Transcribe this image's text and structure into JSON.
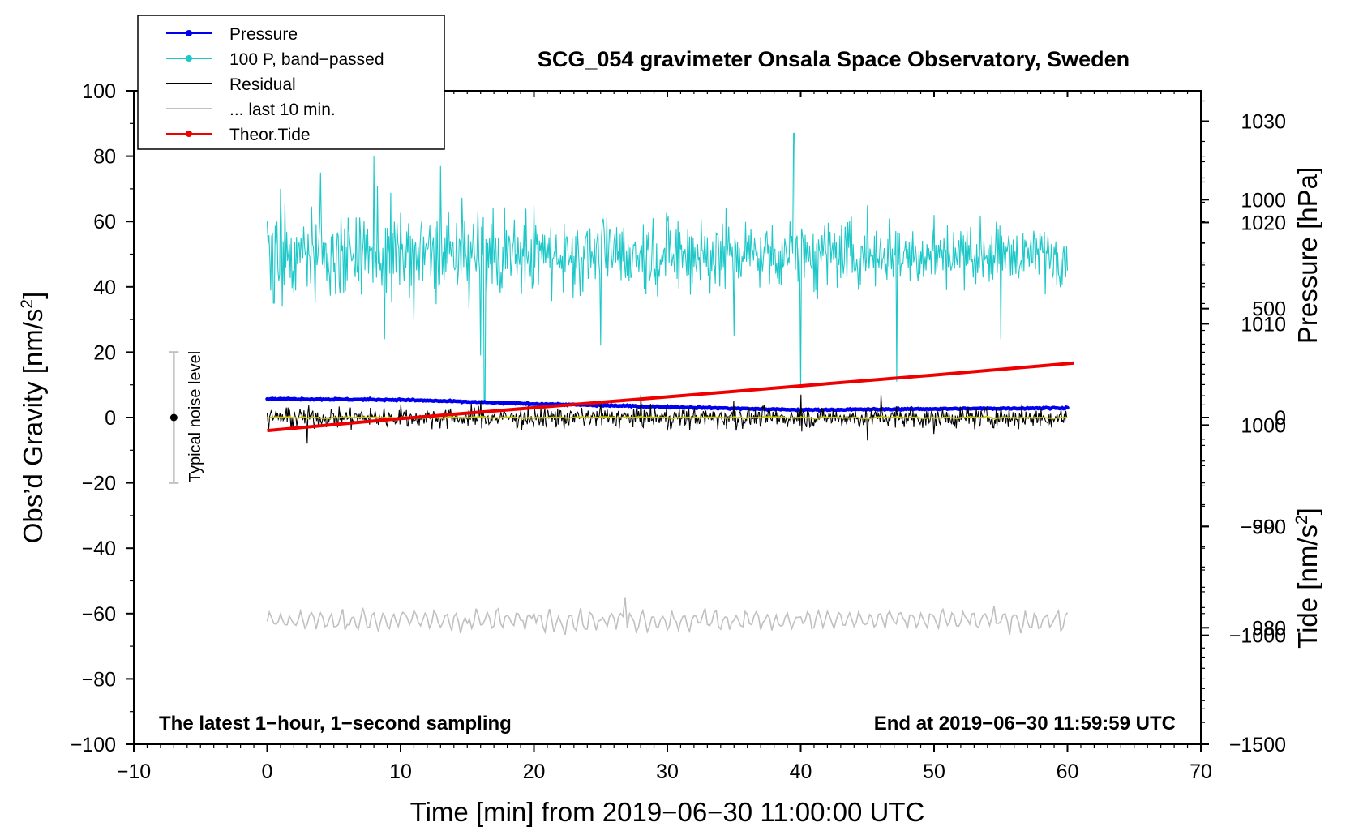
{
  "chart_data": {
    "type": "line",
    "title": "SCG_054 gravimeter Onsala Space Observatory, Sweden",
    "xlabel": "Time [min] from 2019−06−30 11:00:00 UTC",
    "ylabel": "Obs’d Gravity [nm/s",
    "ylabel_sup": "2",
    "ylabel_close": "]",
    "y2label": "Pressure [hPa]",
    "y3label": "Tide [nm/s",
    "y3label_sup": "2",
    "y3label_close": "]",
    "xlim": [
      -10,
      70
    ],
    "ylim": [
      -100,
      100
    ],
    "y2lim": [
      968.5,
      1033
    ],
    "y3lim": [
      -1500,
      1500
    ],
    "x_ticks": [
      -10,
      0,
      10,
      20,
      30,
      40,
      50,
      60,
      70
    ],
    "x_tick_labels": [
      "−10",
      "0",
      "10",
      "20",
      "30",
      "40",
      "50",
      "60",
      "70"
    ],
    "y_ticks": [
      -100,
      -80,
      -60,
      -40,
      -20,
      0,
      20,
      40,
      60,
      80,
      100
    ],
    "y_tick_labels": [
      "−100",
      "−80",
      "−60",
      "−40",
      "−20",
      "0",
      "20",
      "40",
      "60",
      "80",
      "100"
    ],
    "y2_ticks": [
      980,
      990,
      1000,
      1010,
      1020,
      1030
    ],
    "y2_tick_labels": [
      "980",
      "990",
      "1000",
      "1010",
      "1020",
      "1030"
    ],
    "y3_ticks": [
      -1500,
      -1000,
      -500,
      0,
      500,
      1000
    ],
    "y3_tick_labels": [
      "−1500",
      "−1000",
      "−500",
      "0",
      "500",
      "1000"
    ],
    "annotations": {
      "bottom_left": "The latest 1−hour, 1−second sampling",
      "bottom_right": "End at 2019−06−30 11:59:59 UTC",
      "noise_label": "Typical noise level"
    },
    "noise_bar": {
      "x": -7,
      "y_center": 0,
      "y_low": -20,
      "y_high": 20
    },
    "legend": {
      "position": "top-left",
      "entries": [
        {
          "label": "Pressure",
          "color": "#0000ee",
          "marker": true
        },
        {
          "label": "100 P, band−passed",
          "color": "#1ec8c8",
          "marker": true
        },
        {
          "label": "Residual",
          "color": "#000000",
          "marker": false
        },
        {
          "label": "... last 10 min.",
          "color": "#c0c0c0",
          "marker": false
        },
        {
          "label": "Theor.Tide",
          "color": "#ee0000",
          "marker": true
        }
      ]
    },
    "colors": {
      "pressure": "#0000ee",
      "bandpassed": "#1ec8c8",
      "residual": "#000000",
      "residual_smooth": "#c8c800",
      "last10": "#c0c0c0",
      "tide": "#ee0000"
    },
    "series": [
      {
        "name": "Pressure",
        "axis": "pressure_hPa",
        "x": [
          0,
          10,
          20,
          30,
          40,
          50,
          60
        ],
        "values": [
          1002.6,
          1002.5,
          1002.1,
          1001.8,
          1001.5,
          1001.6,
          1001.7
        ]
      },
      {
        "name": "100 P, band−passed",
        "axis": "gravity",
        "center": 50,
        "x": [
          0,
          0.5,
          1,
          2,
          4,
          6,
          8,
          8.8,
          9,
          11,
          13,
          16,
          16.3,
          20,
          25,
          30,
          35,
          39.5,
          40,
          45,
          47.2,
          50,
          55,
          60
        ],
        "values": [
          60,
          35,
          70,
          38,
          75,
          42,
          80,
          24,
          58,
          30,
          77,
          19,
          5,
          65,
          22,
          60,
          25,
          87,
          9,
          65,
          11,
          62,
          24,
          45
        ]
      },
      {
        "name": "Residual",
        "axis": "gravity",
        "center": 0,
        "x": [
          0,
          3,
          10,
          16,
          20,
          25,
          28,
          30,
          35,
          40,
          45,
          46,
          50,
          55,
          60
        ],
        "values": [
          0,
          -8,
          4,
          5,
          -3,
          4,
          7,
          -4,
          5,
          7,
          -7,
          7,
          -5,
          3,
          0
        ]
      },
      {
        "name": "... last 10 min.",
        "axis": "gravity",
        "x": [
          0,
          5,
          10,
          15,
          20,
          25,
          26.8,
          30,
          35,
          40,
          45,
          50,
          56.5,
          60
        ],
        "values": [
          -62,
          -64,
          -61,
          -63,
          -60,
          -62,
          -55,
          -65,
          -62,
          -61,
          -63,
          -61,
          -66,
          -62
        ]
      },
      {
        "name": "Theor.Tide",
        "axis": "tide_nms2",
        "x": [
          0,
          10,
          20,
          30,
          40,
          50,
          60.5
        ],
        "values": [
          -60,
          -5,
          45,
          95,
          145,
          195,
          250
        ]
      }
    ]
  }
}
